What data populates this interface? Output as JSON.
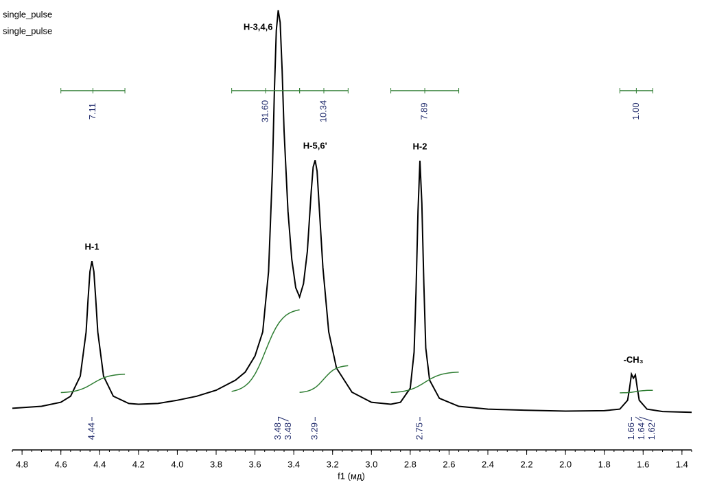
{
  "chart_data": {
    "type": "line",
    "header_lines": [
      "single_pulse",
      "single_pulse"
    ],
    "x_label": "f1 (мд)",
    "xlim": [
      4.85,
      1.35
    ],
    "ylim": [
      -8.5,
      100
    ],
    "xticks": [
      4.8,
      4.6,
      4.4,
      4.2,
      {
        "value": 4,
        "label": "4.0"
      },
      3.8,
      3.6,
      3.4,
      3.2,
      {
        "value": 3,
        "label": "3.0"
      },
      2.8,
      2.6,
      2.4,
      2.2,
      {
        "value": 2,
        "label": "2.0"
      },
      1.8,
      1.6,
      1.4
    ],
    "series": [
      {
        "name": "spectrum",
        "color": "#000000",
        "x": [
          4.85,
          4.7,
          4.6,
          4.55,
          4.5,
          4.47,
          4.46,
          4.45,
          4.44,
          4.43,
          4.42,
          4.41,
          4.38,
          4.33,
          4.25,
          4.2,
          4.1,
          4.0,
          3.9,
          3.8,
          3.7,
          3.65,
          3.6,
          3.56,
          3.53,
          3.51,
          3.5,
          3.49,
          3.48,
          3.47,
          3.46,
          3.45,
          3.43,
          3.41,
          3.39,
          3.37,
          3.35,
          3.33,
          3.31,
          3.3,
          3.29,
          3.28,
          3.27,
          3.25,
          3.22,
          3.18,
          3.1,
          3.0,
          2.9,
          2.85,
          2.8,
          2.78,
          2.77,
          2.76,
          2.75,
          2.74,
          2.73,
          2.72,
          2.7,
          2.65,
          2.55,
          2.4,
          2.2,
          2.0,
          1.8,
          1.72,
          1.68,
          1.67,
          1.66,
          1.65,
          1.64,
          1.63,
          1.62,
          1.58,
          1.5,
          1.35
        ],
        "values": [
          1,
          1.5,
          2.5,
          4,
          9,
          20,
          28,
          35,
          37.6,
          35,
          28,
          20,
          9,
          4,
          2.2,
          2,
          2.2,
          3,
          4,
          5.5,
          8,
          10,
          14,
          20,
          35,
          60,
          80,
          95,
          100,
          97,
          85,
          70,
          50,
          38,
          31,
          28.7,
          32,
          40,
          55,
          61,
          62.7,
          60,
          52,
          36,
          20,
          11,
          5,
          2.5,
          2,
          2.5,
          6,
          15,
          30,
          50,
          62.6,
          52,
          32,
          16,
          8,
          3.5,
          1.5,
          0.8,
          0.5,
          0.3,
          0.4,
          0.8,
          3,
          6,
          9.5,
          8.5,
          9.3,
          6,
          3,
          0.8,
          0.2,
          0
        ]
      }
    ],
    "integrals": {
      "color": "#2e7d32",
      "label_color": "#1f2a6b",
      "items": [
        {
          "range": [
            4.6,
            4.27
          ],
          "value": 7.11,
          "value_label": "7.11"
        },
        {
          "range": [
            3.72,
            3.37
          ],
          "value": 31.6,
          "value_label": "31.60"
        },
        {
          "range": [
            3.37,
            3.12
          ],
          "value": 10.34,
          "value_label": "10.34"
        },
        {
          "range": [
            2.9,
            2.55
          ],
          "value": 7.89,
          "value_label": "7.89"
        },
        {
          "range": [
            1.72,
            1.55
          ],
          "value": 1,
          "value_label": "1.00"
        }
      ]
    },
    "peak_shifts": [
      4.44,
      3.48,
      3.48,
      3.29,
      2.75,
      1.66,
      1.64,
      1.62
    ],
    "peaks": [
      {
        "label": "H-1",
        "shift": 4.44
      },
      {
        "label": "H-3,4,6",
        "shift": 3.48
      },
      {
        "label": "H-5,6'",
        "shift": 3.29
      },
      {
        "label": "H-2",
        "shift": 2.75
      },
      {
        "label": "-CH₃",
        "shift": 1.65
      }
    ]
  }
}
